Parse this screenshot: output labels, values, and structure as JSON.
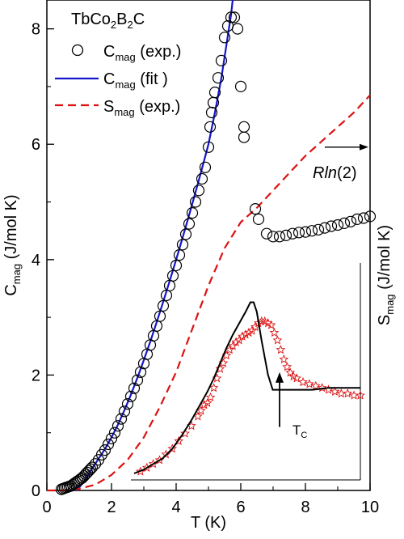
{
  "chart_data": {
    "type": "scatter",
    "legend_placement": "top-left",
    "title": "TbCo₂B₂C",
    "title_parts": {
      "base1": "TbCo",
      "sub1": "2",
      "base2": "B",
      "sub2": "2",
      "base3": "C"
    },
    "xlabel": "T (K)",
    "ylabel": {
      "base": "C",
      "sub": "mag",
      "rest": " (J/mol K)"
    },
    "y2label": {
      "base": "S",
      "sub": "mag",
      "rest": " (J/mol K)"
    },
    "xlim": [
      0,
      10
    ],
    "ylim": [
      0,
      8.5
    ],
    "x_ticks": [
      0,
      2,
      4,
      6,
      8,
      10
    ],
    "x_tick_labels": [
      "0",
      "2",
      "4",
      "6",
      "8",
      "10"
    ],
    "y_ticks": [
      0,
      2,
      4,
      6,
      8
    ],
    "y_tick_labels": [
      "0",
      "2",
      "4",
      "6",
      "8"
    ],
    "grid": false,
    "legend": [
      {
        "key": "cexp",
        "label_base": "C",
        "label_sub": "mag",
        "label_rest": " (exp.)",
        "style": "open-circle",
        "color": "#000000"
      },
      {
        "key": "cfit",
        "label_base": "C",
        "label_sub": "mag",
        "label_rest": " (fit )",
        "style": "line",
        "color": "#1515cc"
      },
      {
        "key": "sexp",
        "label_base": "S",
        "label_sub": "mag",
        "label_rest": " (exp.)",
        "style": "dashed",
        "color": "#dd1111"
      }
    ],
    "series": [
      {
        "key": "cexp",
        "kind": "scatter",
        "color": "#000000",
        "points": [
          [
            0.45,
            0.02
          ],
          [
            0.5,
            0.03
          ],
          [
            0.55,
            0.04
          ],
          [
            0.6,
            0.05
          ],
          [
            0.65,
            0.06
          ],
          [
            0.7,
            0.07
          ],
          [
            0.75,
            0.08
          ],
          [
            0.8,
            0.1
          ],
          [
            0.85,
            0.12
          ],
          [
            0.9,
            0.14
          ],
          [
            0.95,
            0.16
          ],
          [
            1.0,
            0.18
          ],
          [
            1.05,
            0.2
          ],
          [
            1.1,
            0.22
          ],
          [
            1.15,
            0.25
          ],
          [
            1.2,
            0.28
          ],
          [
            1.25,
            0.31
          ],
          [
            1.3,
            0.34
          ],
          [
            1.35,
            0.37
          ],
          [
            1.4,
            0.4
          ],
          [
            1.5,
            0.46
          ],
          [
            1.6,
            0.53
          ],
          [
            1.7,
            0.62
          ],
          [
            1.8,
            0.7
          ],
          [
            1.9,
            0.8
          ],
          [
            2.0,
            0.9
          ],
          [
            2.1,
            1.0
          ],
          [
            2.2,
            1.12
          ],
          [
            2.3,
            1.24
          ],
          [
            2.4,
            1.37
          ],
          [
            2.5,
            1.5
          ],
          [
            2.6,
            1.63
          ],
          [
            2.7,
            1.77
          ],
          [
            2.8,
            1.91
          ],
          [
            2.9,
            2.05
          ],
          [
            3.0,
            2.2
          ],
          [
            3.1,
            2.36
          ],
          [
            3.2,
            2.52
          ],
          [
            3.3,
            2.68
          ],
          [
            3.4,
            2.85
          ],
          [
            3.5,
            3.02
          ],
          [
            3.6,
            3.2
          ],
          [
            3.7,
            3.38
          ],
          [
            3.8,
            3.55
          ],
          [
            3.9,
            3.72
          ],
          [
            4.0,
            3.9
          ],
          [
            4.1,
            4.08
          ],
          [
            4.2,
            4.26
          ],
          [
            4.3,
            4.44
          ],
          [
            4.4,
            4.62
          ],
          [
            4.5,
            4.81
          ],
          [
            4.6,
            5.0
          ],
          [
            4.7,
            5.2
          ],
          [
            4.8,
            5.4
          ],
          [
            4.9,
            5.6
          ],
          [
            5.0,
            5.95
          ],
          [
            5.05,
            6.3
          ],
          [
            5.1,
            6.55
          ],
          [
            5.15,
            6.72
          ],
          [
            5.2,
            6.9
          ],
          [
            5.3,
            7.15
          ],
          [
            5.4,
            7.45
          ],
          [
            5.5,
            7.85
          ],
          [
            5.6,
            8.05
          ],
          [
            5.7,
            8.2
          ],
          [
            5.8,
            8.2
          ],
          [
            5.9,
            8.0
          ],
          [
            6.0,
            7.0
          ],
          [
            6.1,
            6.3
          ],
          [
            6.1,
            6.12
          ],
          [
            6.45,
            4.88
          ],
          [
            6.55,
            4.7
          ],
          [
            6.8,
            4.45
          ],
          [
            7.0,
            4.4
          ],
          [
            7.2,
            4.4
          ],
          [
            7.4,
            4.42
          ],
          [
            7.6,
            4.45
          ],
          [
            7.8,
            4.47
          ],
          [
            8.0,
            4.48
          ],
          [
            8.2,
            4.5
          ],
          [
            8.4,
            4.52
          ],
          [
            8.6,
            4.55
          ],
          [
            8.8,
            4.58
          ],
          [
            9.0,
            4.6
          ],
          [
            9.2,
            4.63
          ],
          [
            9.4,
            4.66
          ],
          [
            9.6,
            4.7
          ],
          [
            9.8,
            4.72
          ],
          [
            10.0,
            4.75
          ]
        ]
      },
      {
        "key": "cfit",
        "kind": "line",
        "color": "#1515cc",
        "points": [
          [
            0.9,
            0.0
          ],
          [
            1.0,
            0.05
          ],
          [
            1.2,
            0.2
          ],
          [
            1.4,
            0.38
          ],
          [
            1.6,
            0.55
          ],
          [
            1.8,
            0.72
          ],
          [
            2.0,
            0.92
          ],
          [
            2.2,
            1.14
          ],
          [
            2.4,
            1.39
          ],
          [
            2.6,
            1.66
          ],
          [
            2.8,
            1.95
          ],
          [
            3.0,
            2.26
          ],
          [
            3.2,
            2.58
          ],
          [
            3.4,
            2.92
          ],
          [
            3.6,
            3.27
          ],
          [
            3.8,
            3.63
          ],
          [
            4.0,
            4.0
          ],
          [
            4.2,
            4.38
          ],
          [
            4.4,
            4.77
          ],
          [
            4.6,
            5.17
          ],
          [
            4.8,
            5.58
          ],
          [
            5.0,
            6.0
          ],
          [
            5.2,
            6.55
          ],
          [
            5.4,
            7.15
          ],
          [
            5.55,
            7.7
          ],
          [
            5.7,
            8.25
          ],
          [
            5.75,
            8.5
          ]
        ]
      },
      {
        "key": "sexp",
        "kind": "dashed",
        "color": "#dd1111",
        "points": [
          [
            0.0,
            0.0
          ],
          [
            0.5,
            0.0
          ],
          [
            1.0,
            0.03
          ],
          [
            1.5,
            0.1
          ],
          [
            2.0,
            0.27
          ],
          [
            2.5,
            0.53
          ],
          [
            3.0,
            0.92
          ],
          [
            3.5,
            1.45
          ],
          [
            4.0,
            2.05
          ],
          [
            4.5,
            2.8
          ],
          [
            5.0,
            3.55
          ],
          [
            5.5,
            4.2
          ],
          [
            6.0,
            4.65
          ],
          [
            6.5,
            4.9
          ],
          [
            7.0,
            5.2
          ],
          [
            7.5,
            5.5
          ],
          [
            8.0,
            5.8
          ],
          [
            8.5,
            6.05
          ],
          [
            9.0,
            6.3
          ],
          [
            9.5,
            6.55
          ],
          [
            10.0,
            6.85
          ]
        ]
      }
    ],
    "annotations": {
      "rln2": {
        "text_prefix": "R",
        "text_ln": "ln",
        "text_arg": "(2)",
        "arrow_from": [
          8.6,
          5.95
        ],
        "arrow_to": [
          10.0,
          5.95
        ]
      },
      "tc": {
        "base": "T",
        "sub": "C",
        "arrow_x": 7.2,
        "arrow_y_from": 1.1,
        "arrow_y_to": 2.05
      }
    },
    "inset": {
      "xlim": [
        2.8,
        10.0
      ],
      "ylim": [
        0,
        1
      ],
      "black_curve": [
        [
          2.9,
          0.0
        ],
        [
          3.2,
          0.02
        ],
        [
          3.5,
          0.05
        ],
        [
          3.8,
          0.08
        ],
        [
          4.1,
          0.13
        ],
        [
          4.4,
          0.2
        ],
        [
          4.7,
          0.28
        ],
        [
          5.0,
          0.37
        ],
        [
          5.2,
          0.43
        ],
        [
          5.4,
          0.5
        ],
        [
          5.6,
          0.58
        ],
        [
          5.8,
          0.66
        ],
        [
          6.0,
          0.73
        ],
        [
          6.2,
          0.79
        ],
        [
          6.4,
          0.85
        ],
        [
          6.55,
          0.9
        ],
        [
          6.65,
          0.9
        ],
        [
          6.75,
          0.85
        ],
        [
          6.9,
          0.7
        ],
        [
          7.1,
          0.52
        ],
        [
          7.25,
          0.44
        ],
        [
          7.5,
          0.44
        ],
        [
          8.0,
          0.44
        ],
        [
          8.5,
          0.44
        ],
        [
          9.0,
          0.45
        ],
        [
          9.5,
          0.45
        ],
        [
          10.0,
          0.45
        ]
      ],
      "red_stars": [
        [
          3.1,
          0.01
        ],
        [
          3.3,
          0.03
        ],
        [
          3.5,
          0.05
        ],
        [
          3.7,
          0.07
        ],
        [
          3.9,
          0.1
        ],
        [
          4.1,
          0.13
        ],
        [
          4.3,
          0.17
        ],
        [
          4.5,
          0.21
        ],
        [
          4.7,
          0.25
        ],
        [
          4.9,
          0.3
        ],
        [
          5.0,
          0.33
        ],
        [
          5.1,
          0.36
        ],
        [
          5.2,
          0.37
        ],
        [
          5.3,
          0.4
        ],
        [
          5.4,
          0.45
        ],
        [
          5.5,
          0.5
        ],
        [
          5.6,
          0.55
        ],
        [
          5.7,
          0.58
        ],
        [
          5.8,
          0.62
        ],
        [
          5.9,
          0.65
        ],
        [
          6.0,
          0.67
        ],
        [
          6.1,
          0.69
        ],
        [
          6.2,
          0.7
        ],
        [
          6.3,
          0.72
        ],
        [
          6.4,
          0.73
        ],
        [
          6.5,
          0.74
        ],
        [
          6.6,
          0.75
        ],
        [
          6.7,
          0.77
        ],
        [
          6.8,
          0.79
        ],
        [
          6.9,
          0.8
        ],
        [
          7.0,
          0.8
        ],
        [
          7.1,
          0.79
        ],
        [
          7.2,
          0.78
        ],
        [
          7.3,
          0.74
        ],
        [
          7.4,
          0.7
        ],
        [
          7.5,
          0.65
        ],
        [
          7.6,
          0.6
        ],
        [
          7.7,
          0.56
        ],
        [
          7.8,
          0.53
        ],
        [
          7.9,
          0.51
        ],
        [
          8.0,
          0.5
        ],
        [
          8.2,
          0.48
        ],
        [
          8.4,
          0.47
        ],
        [
          8.6,
          0.46
        ],
        [
          8.8,
          0.45
        ],
        [
          9.0,
          0.44
        ],
        [
          9.2,
          0.43
        ],
        [
          9.4,
          0.42
        ],
        [
          9.6,
          0.42
        ],
        [
          9.8,
          0.41
        ],
        [
          10.0,
          0.41
        ]
      ]
    }
  }
}
